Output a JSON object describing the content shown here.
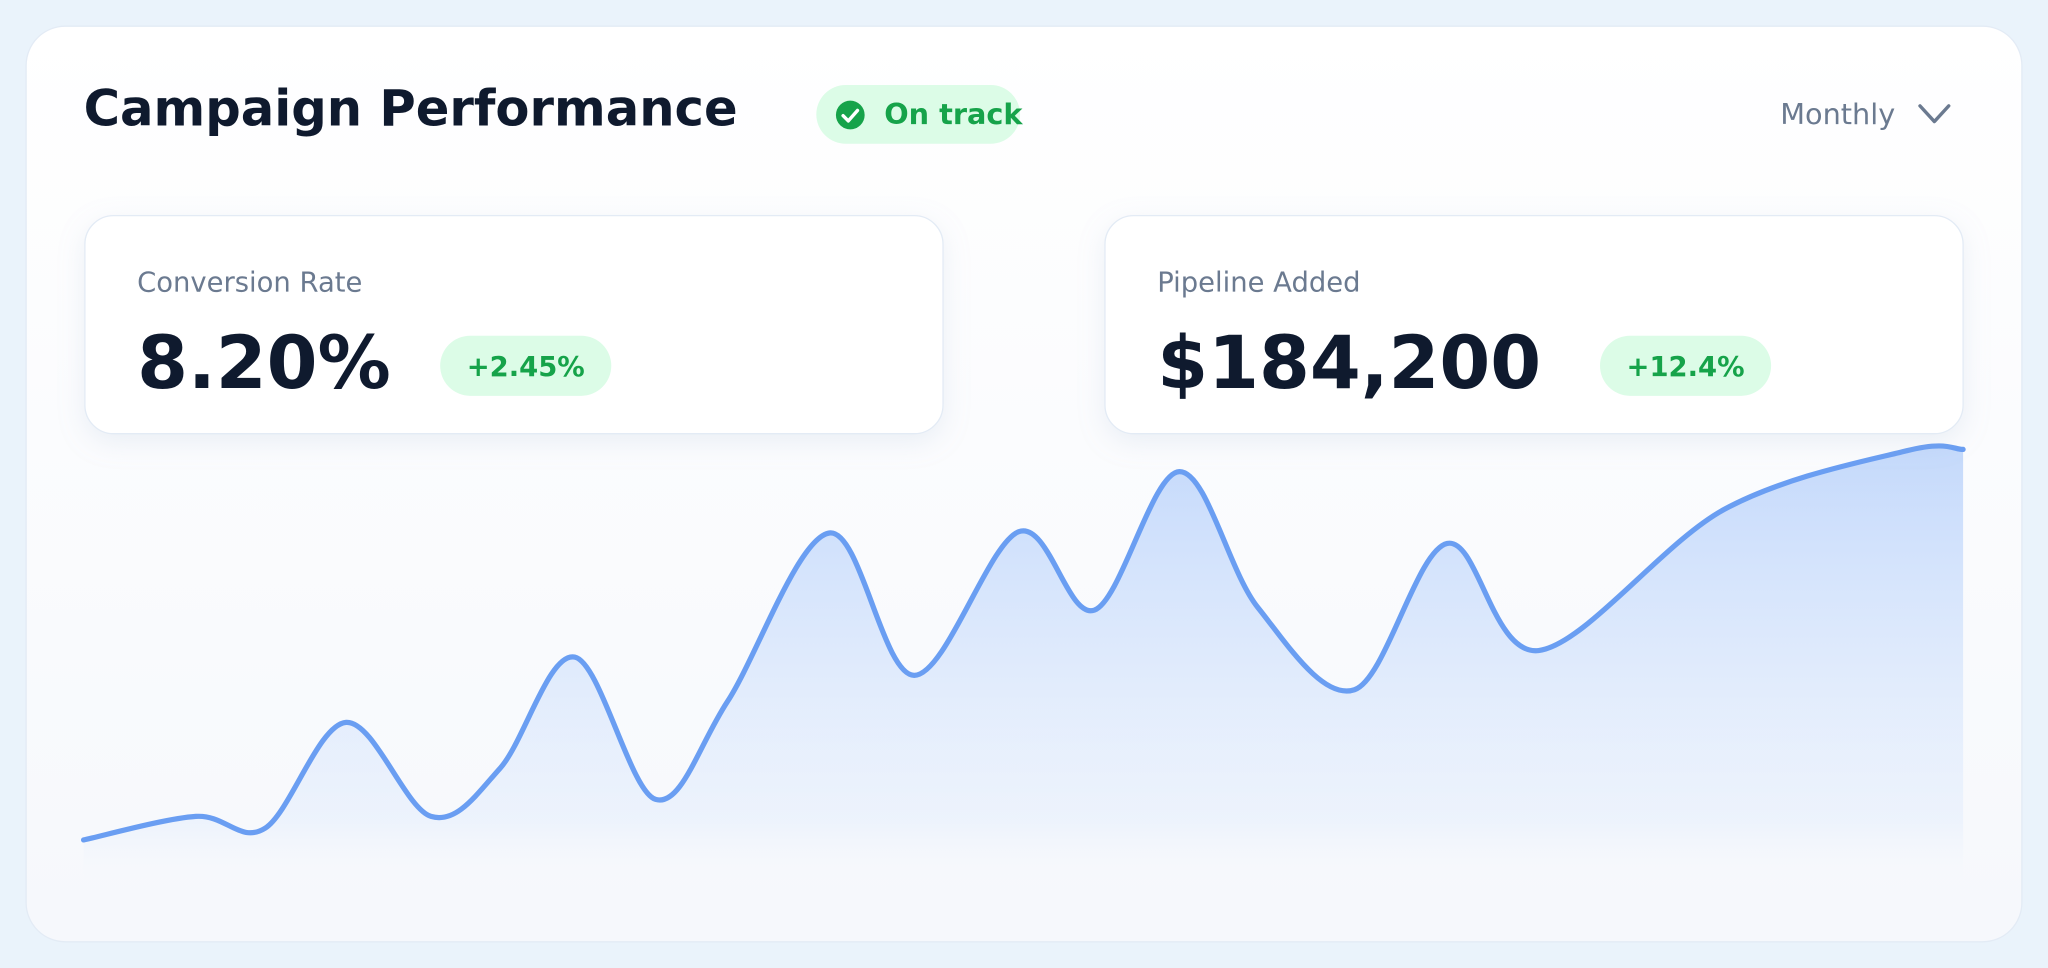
{
  "header": {
    "title": "Campaign Performance",
    "status": "On track",
    "period": "Monthly"
  },
  "kpis": [
    {
      "label": "Conversion Rate",
      "value": "8.20%",
      "change": "+2.45%"
    },
    {
      "label": "Pipeline Added",
      "value": "$184,200",
      "change": "+12.4%"
    }
  ]
}
